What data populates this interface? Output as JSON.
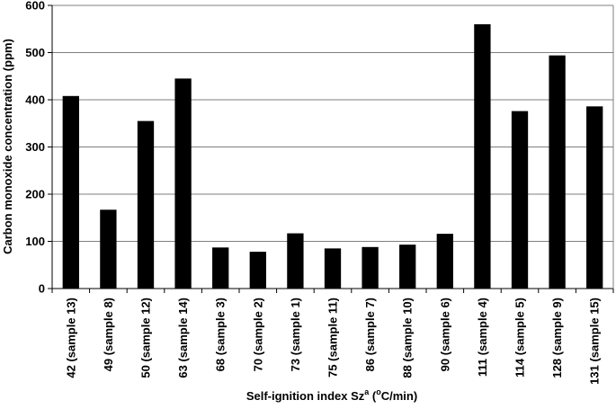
{
  "chart_data": {
    "type": "bar",
    "categories": [
      "42 (sample 13)",
      "49 (sample 8)",
      "50 (sample 12)",
      "63 (sample 14)",
      "68 (sample 3)",
      "70 (sample 2)",
      "73 (sample 1)",
      "75 (sample 11)",
      "86 (sample 7)",
      "88 (sample 10)",
      "90 (sample 6)",
      "111 (sample 4)",
      "114 (sample 5)",
      "128 (sample 9)",
      "131 (sample 15)"
    ],
    "values": [
      408,
      167,
      355,
      445,
      87,
      78,
      117,
      85,
      88,
      93,
      116,
      560,
      376,
      494,
      386
    ],
    "xlabel": "Self-ignition index Sz",
    "xlabel_sup": "a",
    "xlabel_open": " (",
    "xlabel_unit_sup": "o",
    "xlabel_unit": "C/min)",
    "ylabel": "Carbon monoxide concentration (ppm)",
    "ylim": [
      0,
      600
    ],
    "yticks": [
      "0",
      "100",
      "200",
      "300",
      "400",
      "500",
      "600"
    ],
    "grid": true,
    "bar_color": "#000000"
  }
}
